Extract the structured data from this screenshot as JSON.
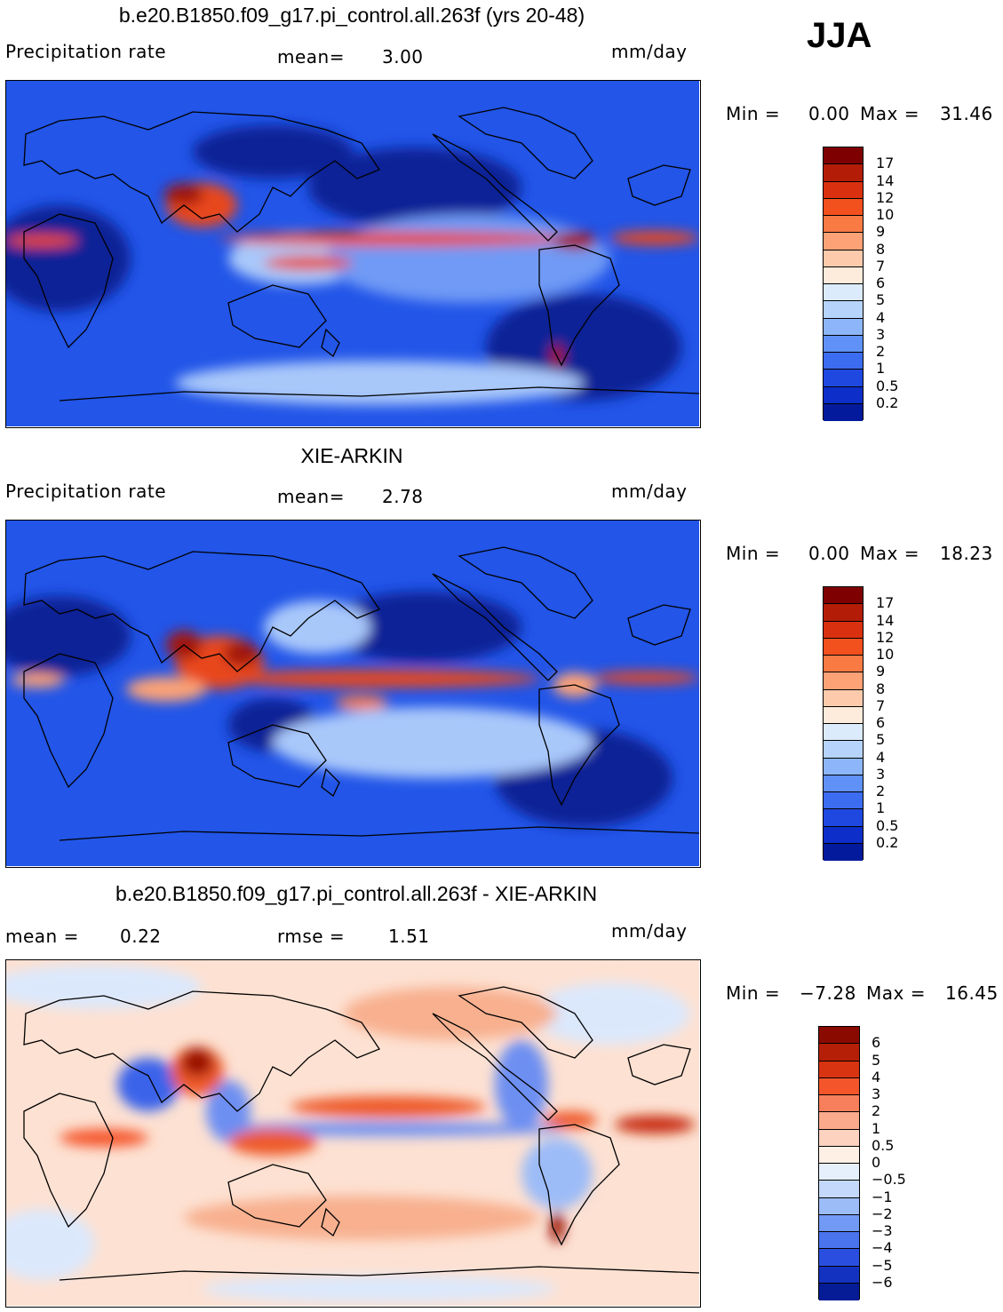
{
  "season": "JJA",
  "panels": [
    {
      "title": "b.e20.B1850.f09_g17.pi_control.all.263f (yrs 20-48)",
      "left_label": "Precipitation  rate",
      "stat1_label": "mean=",
      "stat1_value": "3.00",
      "units": "mm/day",
      "min_label": "Min  =",
      "min_value": "0.00",
      "max_label": "Max  =",
      "max_value": "31.46",
      "colorbar": {
        "labels": [
          "17",
          "14",
          "12",
          "10",
          "9",
          "8",
          "7",
          "6",
          "5",
          "4",
          "3",
          "2",
          "1",
          "0.5",
          "0.2"
        ],
        "colors": [
          "#7f0000",
          "#b31d07",
          "#d93110",
          "#f2501d",
          "#fa7a44",
          "#fca276",
          "#fdcbac",
          "#fdebdb",
          "#dcebfc",
          "#b6d3fb",
          "#8db6fa",
          "#5f91f6",
          "#3c6cf0",
          "#1f48e0",
          "#0d2ec8",
          "#031a9c"
        ]
      }
    },
    {
      "title": "XIE-ARKIN",
      "left_label": "Precipitation  rate",
      "stat1_label": "mean=",
      "stat1_value": "2.78",
      "units": "mm/day",
      "min_label": "Min  =",
      "min_value": "0.00",
      "max_label": "Max  =",
      "max_value": "18.23",
      "colorbar": {
        "labels": [
          "17",
          "14",
          "12",
          "10",
          "9",
          "8",
          "7",
          "6",
          "5",
          "4",
          "3",
          "2",
          "1",
          "0.5",
          "0.2"
        ],
        "colors": [
          "#7f0000",
          "#b31d07",
          "#d93110",
          "#f2501d",
          "#fa7a44",
          "#fca276",
          "#fdcbac",
          "#fdebdb",
          "#dcebfc",
          "#b6d3fb",
          "#8db6fa",
          "#5f91f6",
          "#3c6cf0",
          "#1f48e0",
          "#0d2ec8",
          "#031a9c"
        ]
      }
    },
    {
      "title": "b.e20.B1850.f09_g17.pi_control.all.263f - XIE-ARKIN",
      "stat1_label": "mean  =",
      "stat1_value": "0.22",
      "stat2_label": "rmse  =",
      "stat2_value": "1.51",
      "units": "mm/day",
      "min_label": "Min  =",
      "min_value": "−7.28",
      "max_label": "Max  =",
      "max_value": "16.45",
      "colorbar": {
        "labels": [
          "6",
          "5",
          "4",
          "3",
          "2",
          "1",
          "0.5",
          "0",
          "−0.5",
          "−1",
          "−2",
          "−3",
          "−4",
          "−5",
          "−6"
        ],
        "colors": [
          "#8a0a00",
          "#b51f08",
          "#d93412",
          "#f5552a",
          "#f87f5c",
          "#fbaa8c",
          "#fdd2bf",
          "#fff0e6",
          "#e6f0fd",
          "#c3d8fb",
          "#9cbcf8",
          "#7299f4",
          "#4a73ee",
          "#2a4fe0",
          "#1432c0",
          "#051c96"
        ]
      }
    }
  ],
  "map_colors": {
    "precip_base": "#2255e8",
    "precip_dry": "#0a2296",
    "precip_light": "#a9c8fa",
    "precip_wet": "#e8461c",
    "precip_heavy": "#a11608",
    "diff_base": "#fde1d2",
    "diff_neg": "#3a63ea",
    "diff_pos": "#ee5a2c",
    "diff_strong": "#9a0f04",
    "coast": "#000000"
  }
}
